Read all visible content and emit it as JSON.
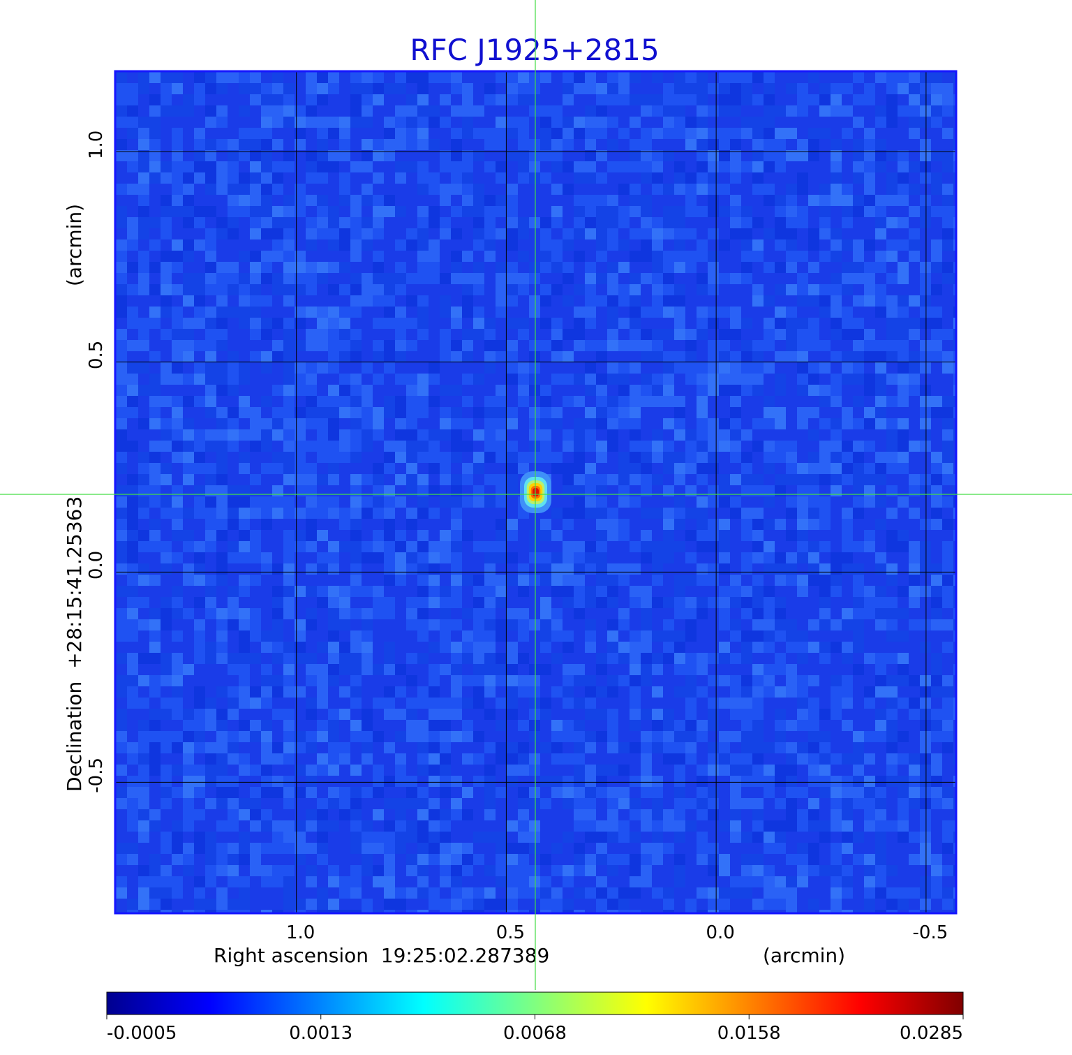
{
  "chart_data": {
    "type": "heatmap",
    "title": "RFC J1925+2815",
    "xlabel": "Right ascension  19:25:02.287389",
    "xunit": "(arcmin)",
    "ylabel": "Declination  +28:15:41.25363",
    "yunit": "(arcmin)",
    "xlim": [
      1.43,
      -0.57
    ],
    "ylim": [
      -0.81,
      1.19
    ],
    "x_ticks": [
      {
        "value": 1.0,
        "label": "1.0"
      },
      {
        "value": 0.5,
        "label": "0.5"
      },
      {
        "value": 0.0,
        "label": "0.0"
      },
      {
        "value": -0.5,
        "label": "-0.5"
      }
    ],
    "y_ticks": [
      {
        "value": 1.0,
        "label": "1.0"
      },
      {
        "value": 0.5,
        "label": "0.5"
      },
      {
        "value": 0.0,
        "label": "0.0"
      },
      {
        "value": -0.5,
        "label": "-0.5"
      }
    ],
    "grid": true,
    "source_peak": {
      "x": 0.43,
      "y": 0.19,
      "value": 0.0285
    },
    "crosshair": {
      "x": 0.43,
      "y": 0.19
    },
    "colorbar": {
      "colormap": "jet",
      "ticks": [
        "-0.0005",
        "0.0013",
        "0.0068",
        "0.0158",
        "0.0285"
      ]
    },
    "colors": {
      "title": "#1010d0",
      "crosshair": "#44dd44",
      "grid": "#000000",
      "frame": "#1515ff",
      "background_noise": "#1848f0"
    }
  }
}
